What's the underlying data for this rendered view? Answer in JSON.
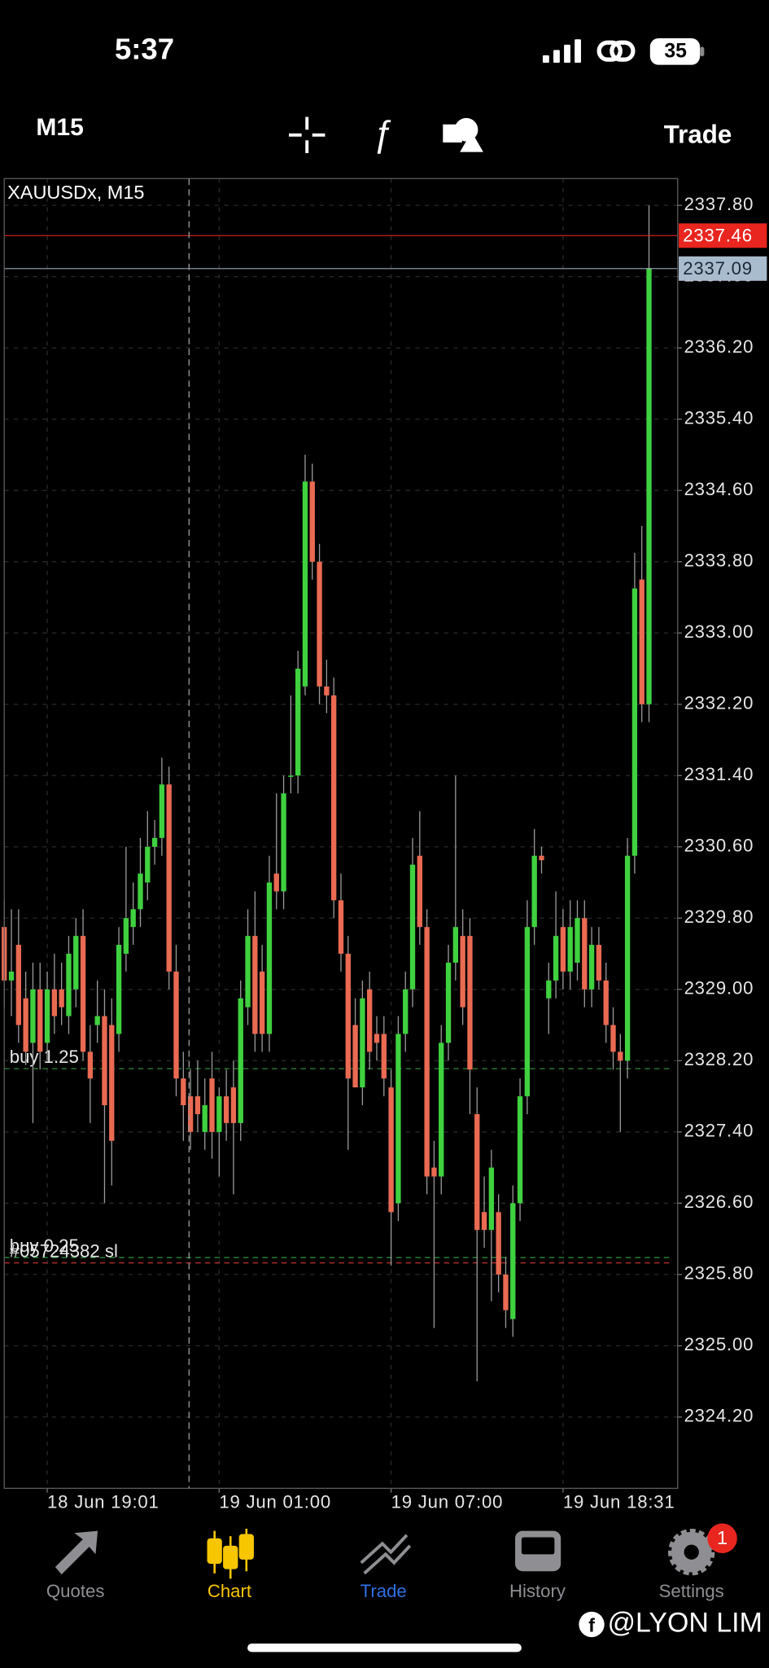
{
  "status_bar": {
    "time": "5:37",
    "battery": "35"
  },
  "toolbar": {
    "timeframe": "M15",
    "trade": "Trade"
  },
  "chart_data": {
    "type": "candlestick",
    "title": "XAUUSDx, M15",
    "open": [
      2329.7,
      2329.1,
      2329.5,
      2328.9,
      2328.4,
      2329.0,
      2328.4,
      2329.0,
      2329.0,
      2328.7,
      2329.0,
      2329.6,
      2328.3,
      2328.6,
      2328.7,
      2328.6,
      2328.5,
      2329.4,
      2329.7,
      2329.9,
      2330.2,
      2330.6,
      2330.7,
      2331.3,
      2329.2,
      2328.0,
      2327.8,
      2327.8,
      2327.4,
      2328.0,
      2327.4,
      2327.8,
      2327.9,
      2327.5,
      2328.8,
      2329.6,
      2329.2,
      2328.5,
      2330.3,
      2330.1,
      2331.4,
      2331.4,
      2332.4,
      2334.7,
      2333.8,
      2332.4,
      2332.3,
      2330.0,
      2329.4,
      2328.6,
      2327.9,
      2329.0,
      2328.5,
      2328.5,
      2327.9,
      2326.6,
      2328.5,
      2329.0,
      2330.5,
      2329.7,
      2327.0,
      2326.9,
      2328.4,
      2329.3,
      2329.6,
      2329.6,
      2327.6,
      2326.5,
      2326.3,
      2326.5,
      2325.8,
      2325.3,
      2326.6,
      2327.8,
      2329.7,
      2330.5,
      2328.9,
      2329.1,
      2329.7,
      2329.2,
      2329.3,
      2329.8,
      2329.0,
      2329.5,
      2329.1,
      2328.6,
      2328.3,
      2328.2,
      2330.5,
      2333.6,
      2332.2
    ],
    "high": [
      2330.0,
      2329.9,
      2329.9,
      2329.2,
      2329.3,
      2329.3,
      2329.2,
      2329.4,
      2329.3,
      2329.6,
      2329.8,
      2329.9,
      2328.6,
      2329.1,
      2329.0,
      2328.9,
      2329.7,
      2330.6,
      2330.2,
      2330.7,
      2331.0,
      2330.9,
      2331.6,
      2331.5,
      2329.5,
      2328.3,
      2328.1,
      2328.2,
      2328.0,
      2328.3,
      2327.9,
      2328.1,
      2328.2,
      2329.1,
      2329.9,
      2330.1,
      2329.5,
      2330.5,
      2331.2,
      2331.4,
      2332.3,
      2332.8,
      2335.0,
      2334.9,
      2334.0,
      2332.7,
      2332.5,
      2330.3,
      2329.6,
      2328.9,
      2329.1,
      2329.2,
      2328.7,
      2328.7,
      2328.1,
      2328.7,
      2329.2,
      2330.7,
      2331.0,
      2329.9,
      2327.3,
      2328.6,
      2329.5,
      2331.4,
      2329.9,
      2329.8,
      2327.9,
      2326.9,
      2327.2,
      2326.7,
      2326.0,
      2326.8,
      2328.0,
      2330.0,
      2330.8,
      2330.6,
      2329.3,
      2330.1,
      2329.9,
      2330.0,
      2330.0,
      2330.0,
      2329.7,
      2329.7,
      2329.3,
      2328.8,
      2328.5,
      2330.7,
      2333.9,
      2334.2,
      2337.8
    ],
    "low": [
      2328.8,
      2328.7,
      2328.4,
      2328.15,
      2327.5,
      2328.1,
      2328.2,
      2328.5,
      2328.6,
      2328.5,
      2328.8,
      2328.2,
      2327.5,
      2328.4,
      2326.6,
      2326.8,
      2328.3,
      2329.2,
      2329.5,
      2329.7,
      2330.0,
      2330.4,
      2330.5,
      2329.0,
      2327.8,
      2327.3,
      2327.2,
      2327.4,
      2327.2,
      2327.1,
      2326.9,
      2327.3,
      2326.7,
      2327.3,
      2328.6,
      2328.3,
      2328.3,
      2328.3,
      2329.9,
      2329.9,
      2331.2,
      2331.2,
      2332.3,
      2333.6,
      2332.2,
      2332.1,
      2329.8,
      2329.2,
      2327.2,
      2327.9,
      2327.7,
      2328.1,
      2328.2,
      2327.8,
      2325.9,
      2326.4,
      2328.3,
      2328.8,
      2329.5,
      2326.7,
      2325.2,
      2326.7,
      2328.2,
      2329.1,
      2328.6,
      2327.6,
      2324.6,
      2326.1,
      2325.5,
      2325.6,
      2325.2,
      2325.1,
      2326.4,
      2327.6,
      2329.5,
      2330.3,
      2328.5,
      2328.9,
      2329.0,
      2329.0,
      2329.1,
      2328.8,
      2328.8,
      2329.0,
      2328.4,
      2328.1,
      2327.4,
      2328.0,
      2330.3,
      2332.0,
      2332.0
    ],
    "close": [
      2329.1,
      2329.2,
      2328.6,
      2328.3,
      2329.0,
      2328.3,
      2329.0,
      2328.7,
      2328.8,
      2329.4,
      2329.6,
      2328.3,
      2328.0,
      2328.7,
      2327.7,
      2327.3,
      2329.5,
      2329.8,
      2329.9,
      2330.3,
      2330.6,
      2330.7,
      2331.3,
      2329.2,
      2328.0,
      2327.7,
      2327.4,
      2327.6,
      2327.7,
      2327.4,
      2327.8,
      2327.5,
      2327.5,
      2328.9,
      2329.6,
      2328.5,
      2328.5,
      2330.2,
      2330.1,
      2331.2,
      2331.4,
      2332.6,
      2334.7,
      2333.8,
      2332.4,
      2332.3,
      2330.0,
      2329.4,
      2328.0,
      2327.9,
      2328.9,
      2328.3,
      2328.4,
      2328.0,
      2326.5,
      2328.5,
      2329.0,
      2330.4,
      2329.7,
      2326.9,
      2326.9,
      2328.4,
      2329.3,
      2329.7,
      2328.8,
      2328.1,
      2326.3,
      2326.3,
      2327.0,
      2325.8,
      2325.4,
      2326.6,
      2327.8,
      2329.7,
      2330.5,
      2330.45,
      2329.1,
      2329.6,
      2329.2,
      2329.7,
      2329.8,
      2329.0,
      2329.5,
      2329.1,
      2328.6,
      2328.3,
      2328.2,
      2330.5,
      2333.5,
      2332.2,
      2337.09
    ],
    "up_color": "#3fd13f",
    "down_color": "#ea6a52",
    "xlim": [
      0,
      94
    ],
    "xticks": [
      {
        "value": 6,
        "label": "18 Jun 19:01"
      },
      {
        "value": 30,
        "label": "19 Jun 01:00"
      },
      {
        "value": 54,
        "label": "19 Jun 07:00"
      },
      {
        "value": 78,
        "label": "19 Jun 18:31"
      }
    ],
    "ylim": [
      2323.4,
      2338.1
    ],
    "yticks": [
      {
        "value": 2324.2,
        "label": "2324.20"
      },
      {
        "value": 2325.0,
        "label": "2325.00"
      },
      {
        "value": 2325.8,
        "label": "2325.80"
      },
      {
        "value": 2326.6,
        "label": "2326.60"
      },
      {
        "value": 2327.4,
        "label": "2327.40"
      },
      {
        "value": 2328.2,
        "label": "2328.20"
      },
      {
        "value": 2329.0,
        "label": "2329.00"
      },
      {
        "value": 2329.8,
        "label": "2329.80"
      },
      {
        "value": 2330.6,
        "label": "2330.60"
      },
      {
        "value": 2331.4,
        "label": "2331.40"
      },
      {
        "value": 2332.2,
        "label": "2332.20"
      },
      {
        "value": 2333.0,
        "label": "2333.00"
      },
      {
        "value": 2333.8,
        "label": "2333.80"
      },
      {
        "value": 2334.6,
        "label": "2334.60"
      },
      {
        "value": 2335.4,
        "label": "2335.40"
      },
      {
        "value": 2336.2,
        "label": "2336.20"
      },
      {
        "value": 2337.0,
        "label": "2337.00"
      },
      {
        "value": 2337.8,
        "label": "2337.80"
      }
    ],
    "grid": true,
    "ask": 2337.46,
    "ask_color": "#e8261f",
    "bid": 2337.09,
    "bid_color": "#a9bccd",
    "levels": [
      {
        "label": "buy 1.25",
        "value": 2328.11,
        "color": "#2f8a3a"
      },
      {
        "label": "buy 0.25",
        "value": 2325.99,
        "color": "#2f8a3a"
      },
      {
        "label": "#05724382 sl",
        "value": 2325.93,
        "color": "#c0322b"
      }
    ]
  },
  "tab_bar": {
    "tabs": [
      "Quotes",
      "Chart",
      "Trade",
      "History",
      "Settings"
    ],
    "badge": "1"
  },
  "watermark": "@LYON LIM"
}
